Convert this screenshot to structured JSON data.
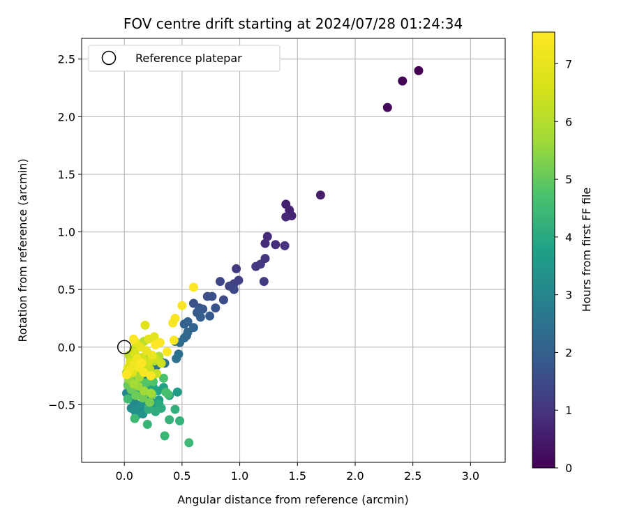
{
  "chart_data": {
    "type": "scatter",
    "title": "FOV centre drift starting at 2024/07/28 01:24:34",
    "xlabel": "Angular distance from reference (arcmin)",
    "ylabel": "Rotation from reference (arcmin)",
    "xlim": [
      -0.37,
      3.3
    ],
    "ylim": [
      -1.0,
      2.68
    ],
    "xticks": [
      0.0,
      0.5,
      1.0,
      1.5,
      2.0,
      2.5,
      3.0
    ],
    "xtick_labels": [
      "0.0",
      "0.5",
      "1.0",
      "1.5",
      "2.0",
      "2.5",
      "3.0"
    ],
    "yticks": [
      -0.5,
      0.0,
      0.5,
      1.0,
      1.5,
      2.0,
      2.5
    ],
    "ytick_labels": [
      "−0.5",
      "0.0",
      "0.5",
      "1.0",
      "1.5",
      "2.0",
      "2.5"
    ],
    "grid": true,
    "legend": {
      "position": "top-left",
      "entries": [
        "Reference platepar"
      ]
    },
    "reference_point": [
      0.0,
      0.0
    ],
    "colorbar": {
      "label": "Hours from first FF file",
      "range": [
        0,
        7.55
      ],
      "ticks": [
        0,
        1,
        2,
        3,
        4,
        5,
        6,
        7
      ],
      "colormap": "viridis"
    },
    "points": [
      [
        2.55,
        2.4,
        0.0
      ],
      [
        2.41,
        2.31,
        0.05
      ],
      [
        2.28,
        2.08,
        0.1
      ],
      [
        1.7,
        1.32,
        0.55
      ],
      [
        1.4,
        1.24,
        0.6
      ],
      [
        1.43,
        1.19,
        0.65
      ],
      [
        1.45,
        1.14,
        0.7
      ],
      [
        1.4,
        1.13,
        0.75
      ],
      [
        1.24,
        0.96,
        0.8
      ],
      [
        1.22,
        0.9,
        0.85
      ],
      [
        1.31,
        0.89,
        0.9
      ],
      [
        1.39,
        0.88,
        0.95
      ],
      [
        1.22,
        0.77,
        1.0
      ],
      [
        1.18,
        0.72,
        1.05
      ],
      [
        1.14,
        0.7,
        1.1
      ],
      [
        0.97,
        0.68,
        1.15
      ],
      [
        1.21,
        0.57,
        1.2
      ],
      [
        0.99,
        0.58,
        1.25
      ],
      [
        0.95,
        0.55,
        1.3
      ],
      [
        0.91,
        0.53,
        1.35
      ],
      [
        0.83,
        0.57,
        1.4
      ],
      [
        0.95,
        0.5,
        1.45
      ],
      [
        0.86,
        0.41,
        1.5
      ],
      [
        0.72,
        0.44,
        1.55
      ],
      [
        0.76,
        0.44,
        1.6
      ],
      [
        0.6,
        0.38,
        1.65
      ],
      [
        0.79,
        0.34,
        1.7
      ],
      [
        0.65,
        0.34,
        1.75
      ],
      [
        0.68,
        0.33,
        1.8
      ],
      [
        0.63,
        0.3,
        1.85
      ],
      [
        0.74,
        0.27,
        1.9
      ],
      [
        0.66,
        0.26,
        1.95
      ],
      [
        0.55,
        0.22,
        2.0
      ],
      [
        0.52,
        0.2,
        2.05
      ],
      [
        0.6,
        0.17,
        2.1
      ],
      [
        0.55,
        0.13,
        2.15
      ],
      [
        0.54,
        0.1,
        2.2
      ],
      [
        0.52,
        0.08,
        2.25
      ],
      [
        0.48,
        0.04,
        2.3
      ],
      [
        0.44,
        0.05,
        2.35
      ],
      [
        0.47,
        -0.06,
        2.4
      ],
      [
        0.45,
        -0.1,
        2.45
      ],
      [
        0.35,
        -0.14,
        2.5
      ],
      [
        0.31,
        -0.12,
        2.55
      ],
      [
        0.28,
        -0.16,
        2.6
      ],
      [
        0.24,
        -0.2,
        2.65
      ],
      [
        0.22,
        -0.24,
        2.7
      ],
      [
        0.2,
        -0.28,
        2.75
      ],
      [
        0.18,
        -0.3,
        2.8
      ],
      [
        0.16,
        -0.34,
        2.85
      ],
      [
        0.14,
        -0.37,
        2.9
      ],
      [
        0.12,
        -0.4,
        2.95
      ],
      [
        0.02,
        -0.4,
        3.0
      ],
      [
        0.05,
        -0.44,
        3.05
      ],
      [
        0.08,
        -0.47,
        3.1
      ],
      [
        0.11,
        -0.5,
        3.15
      ],
      [
        0.06,
        -0.53,
        3.2
      ],
      [
        0.09,
        -0.55,
        3.25
      ],
      [
        0.14,
        -0.52,
        3.3
      ],
      [
        0.16,
        -0.58,
        3.35
      ],
      [
        0.1,
        -0.6,
        3.4
      ],
      [
        0.18,
        -0.47,
        3.45
      ],
      [
        0.22,
        -0.44,
        3.5
      ],
      [
        0.26,
        -0.49,
        3.55
      ],
      [
        0.3,
        -0.46,
        3.6
      ],
      [
        0.46,
        -0.39,
        3.65
      ],
      [
        0.39,
        -0.42,
        3.7
      ],
      [
        0.34,
        -0.35,
        3.75
      ],
      [
        0.29,
        -0.38,
        3.8
      ],
      [
        0.25,
        -0.35,
        3.85
      ],
      [
        0.2,
        -0.38,
        3.9
      ],
      [
        0.15,
        -0.36,
        3.95
      ],
      [
        0.3,
        -0.49,
        4.0
      ],
      [
        0.32,
        -0.53,
        4.05
      ],
      [
        0.27,
        -0.56,
        4.1
      ],
      [
        0.21,
        -0.54,
        4.15
      ],
      [
        0.44,
        -0.54,
        4.2
      ],
      [
        0.48,
        -0.64,
        4.25
      ],
      [
        0.39,
        -0.63,
        4.3
      ],
      [
        0.2,
        -0.67,
        4.35
      ],
      [
        0.35,
        -0.77,
        4.4
      ],
      [
        0.56,
        -0.83,
        4.45
      ],
      [
        0.09,
        -0.62,
        4.5
      ],
      [
        0.03,
        -0.45,
        4.55
      ],
      [
        0.38,
        -0.41,
        4.6
      ],
      [
        0.36,
        -0.39,
        4.65
      ],
      [
        0.34,
        -0.27,
        4.7
      ],
      [
        0.25,
        -0.3,
        4.75
      ],
      [
        0.19,
        -0.31,
        4.8
      ],
      [
        0.14,
        -0.3,
        4.85
      ],
      [
        0.11,
        -0.28,
        4.9
      ],
      [
        0.07,
        -0.27,
        4.95
      ],
      [
        0.03,
        -0.33,
        5.0
      ],
      [
        0.06,
        -0.37,
        5.05
      ],
      [
        0.1,
        -0.42,
        5.1
      ],
      [
        0.16,
        -0.44,
        5.15
      ],
      [
        0.22,
        -0.48,
        5.2
      ],
      [
        0.24,
        -0.41,
        5.25
      ],
      [
        0.18,
        -0.22,
        5.3
      ],
      [
        0.13,
        -0.2,
        5.35
      ],
      [
        0.09,
        -0.23,
        5.4
      ],
      [
        0.05,
        -0.18,
        5.45
      ],
      [
        0.02,
        -0.22,
        5.5
      ],
      [
        0.04,
        -0.28,
        5.55
      ],
      [
        0.12,
        -0.34,
        5.6
      ],
      [
        0.17,
        -0.38,
        5.65
      ],
      [
        0.23,
        -0.4,
        5.7
      ],
      [
        0.08,
        -0.32,
        5.75
      ],
      [
        0.13,
        -0.26,
        5.8
      ],
      [
        0.26,
        -0.12,
        5.85
      ],
      [
        0.3,
        -0.08,
        5.9
      ],
      [
        0.21,
        -0.06,
        5.95
      ],
      [
        0.17,
        0.05,
        6.0
      ],
      [
        0.12,
        0.02,
        6.05
      ],
      [
        0.08,
        -0.02,
        6.1
      ],
      [
        0.04,
        -0.07,
        6.15
      ],
      [
        0.1,
        -0.12,
        6.2
      ],
      [
        0.16,
        -0.15,
        6.25
      ],
      [
        0.22,
        -0.19,
        6.3
      ],
      [
        0.28,
        -0.23,
        6.35
      ],
      [
        0.32,
        -0.14,
        6.4
      ],
      [
        0.27,
        -0.1,
        6.45
      ],
      [
        0.21,
        -0.13,
        6.5
      ],
      [
        0.15,
        -0.09,
        6.55
      ],
      [
        0.09,
        -0.05,
        6.6
      ],
      [
        0.05,
        -0.13,
        6.65
      ],
      [
        0.03,
        -0.18,
        6.7
      ],
      [
        0.07,
        -0.22,
        6.75
      ],
      [
        0.18,
        0.19,
        6.8
      ],
      [
        0.26,
        0.09,
        6.85
      ],
      [
        0.21,
        0.07,
        6.9
      ],
      [
        0.1,
        0.04,
        6.95
      ],
      [
        0.14,
        0.0,
        7.0
      ],
      [
        0.19,
        -0.03,
        7.05
      ],
      [
        0.24,
        -0.07,
        7.1
      ],
      [
        0.11,
        -0.1,
        7.15
      ],
      [
        0.08,
        -0.15,
        7.2
      ],
      [
        0.05,
        -0.2,
        7.25
      ],
      [
        0.13,
        -0.18,
        7.3
      ],
      [
        0.17,
        -0.22,
        7.35
      ],
      [
        0.42,
        0.21,
        7.4
      ],
      [
        0.44,
        0.25,
        7.42
      ],
      [
        0.5,
        0.36,
        7.45
      ],
      [
        0.6,
        0.52,
        7.5
      ],
      [
        0.37,
        -0.04,
        7.52
      ],
      [
        0.31,
        0.04,
        7.54
      ],
      [
        0.43,
        0.06,
        7.55
      ],
      [
        0.08,
        0.07,
        7.55
      ],
      [
        0.27,
        0.02,
        7.55
      ],
      [
        0.15,
        -0.14,
        7.55
      ],
      [
        0.02,
        -0.24,
        7.55
      ],
      [
        0.23,
        -0.25,
        7.55
      ]
    ]
  }
}
